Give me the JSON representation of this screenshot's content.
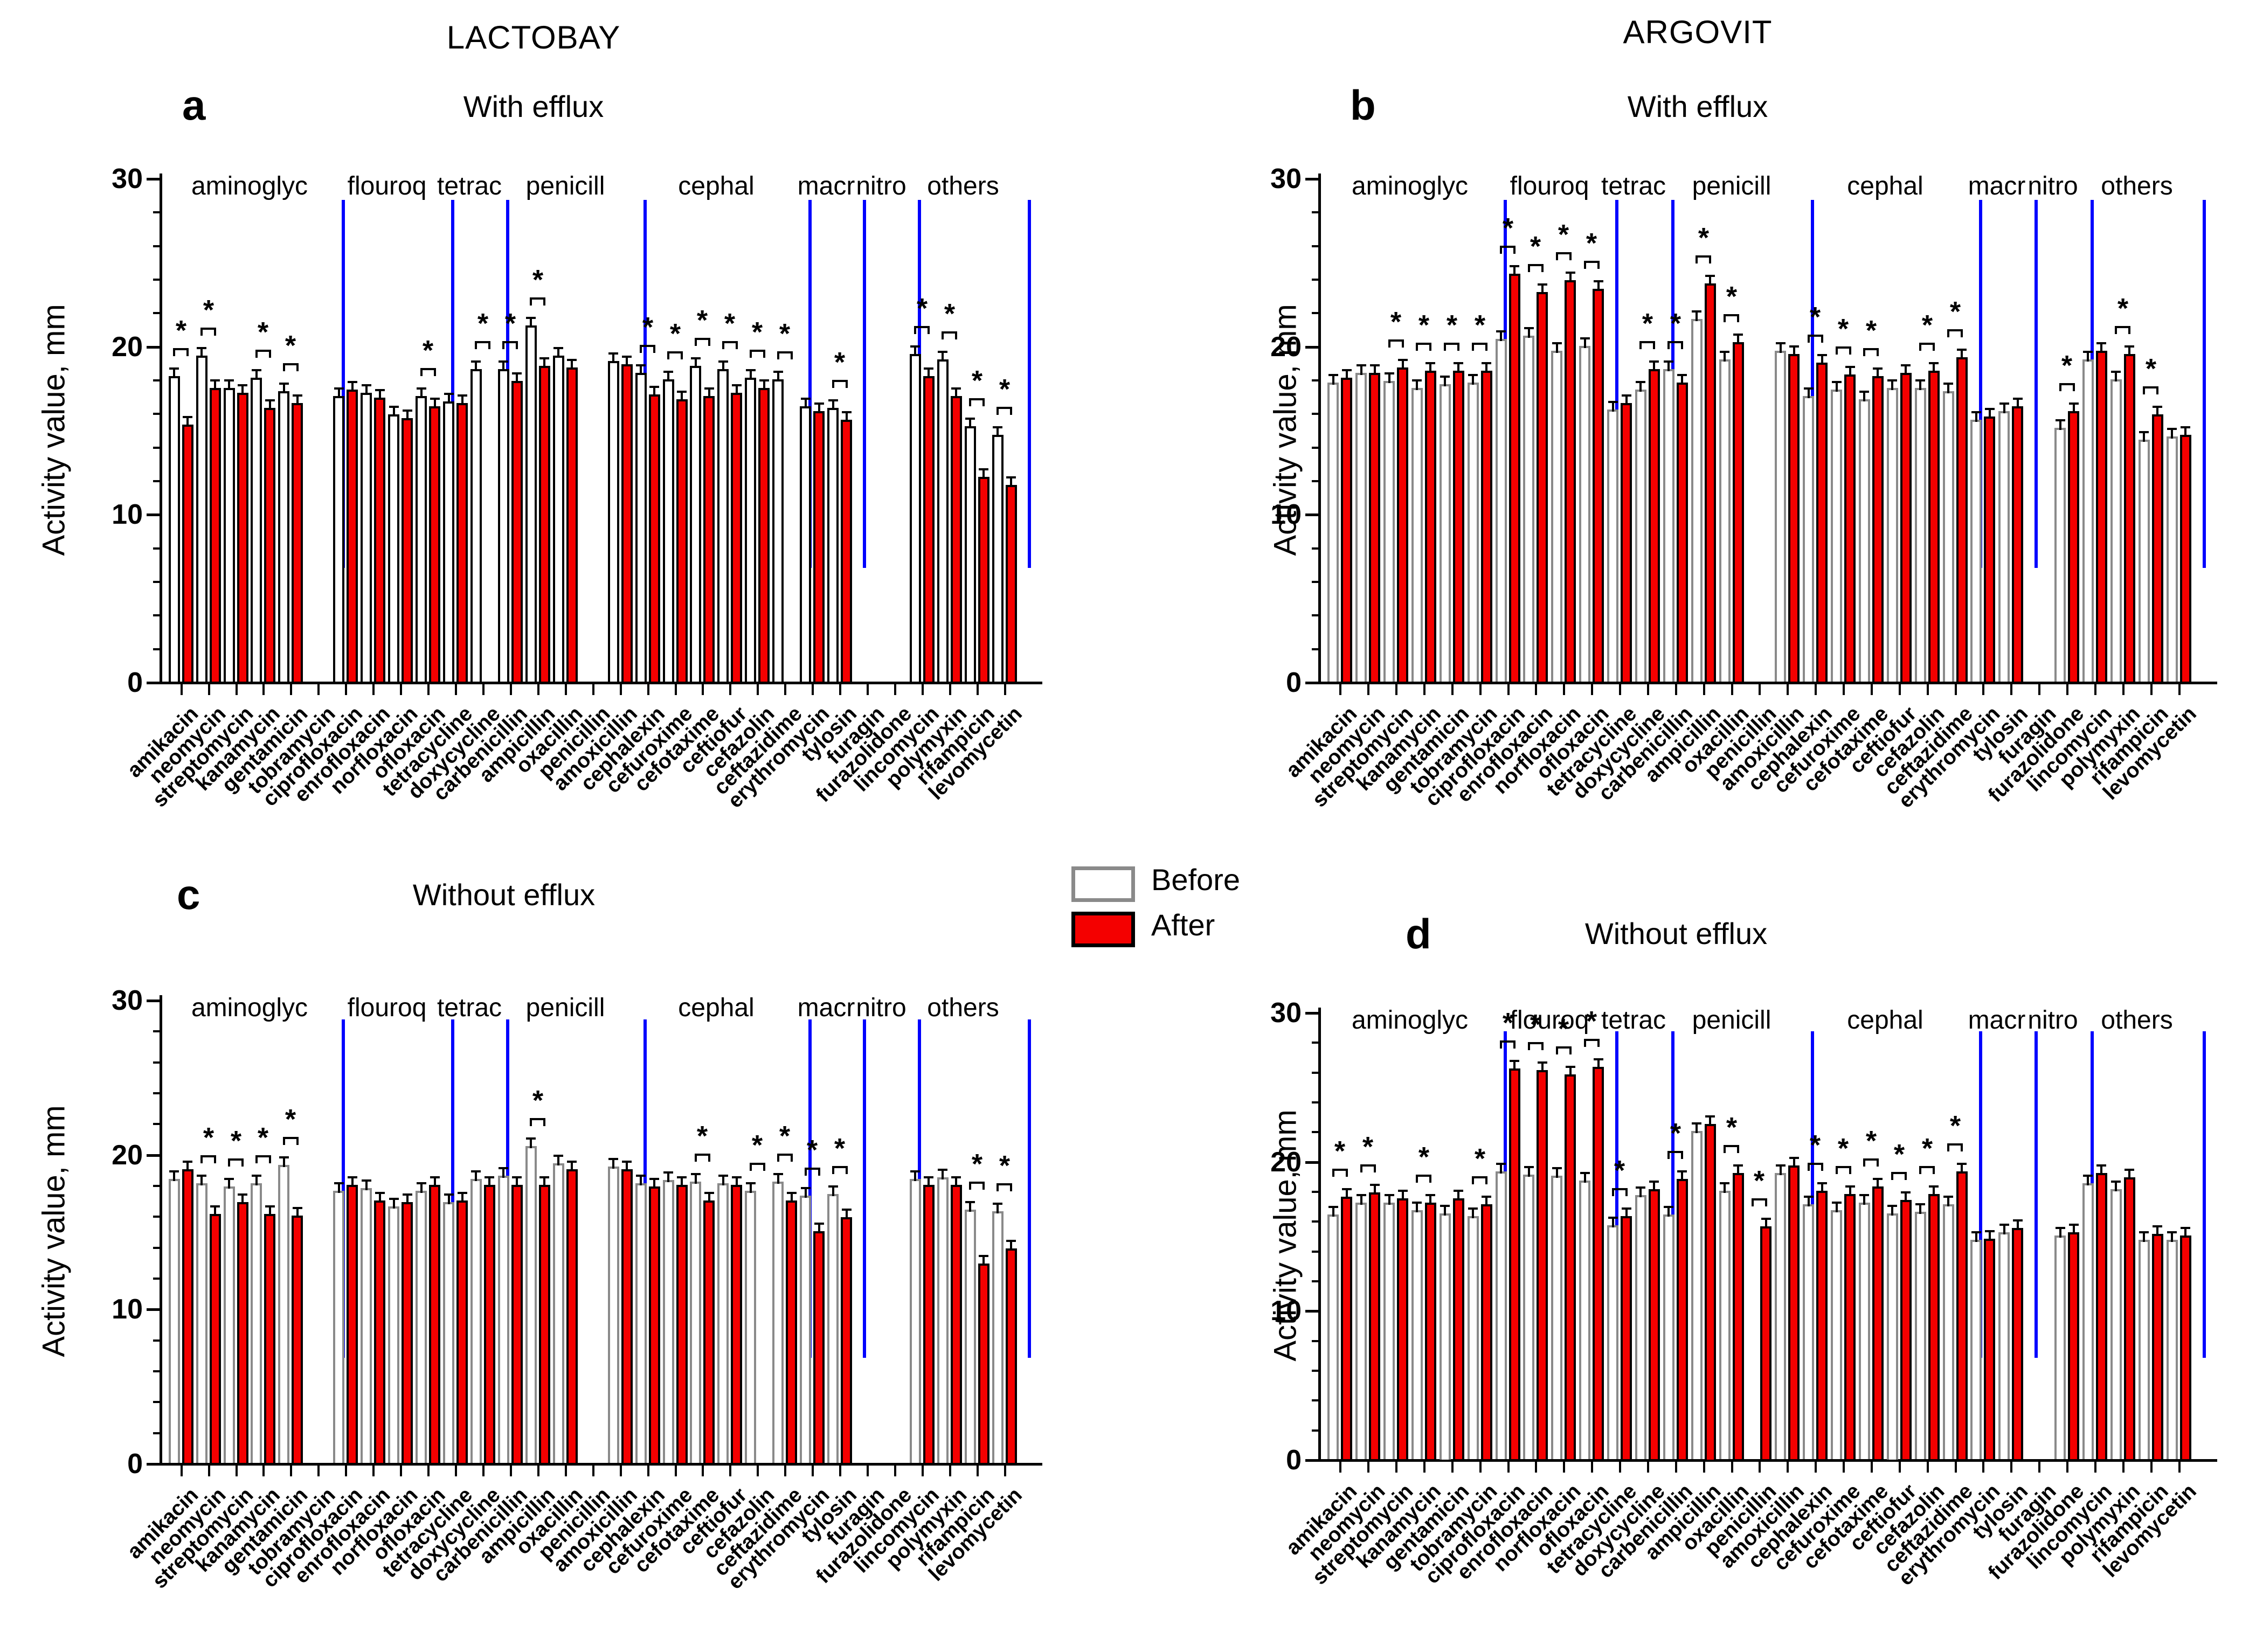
{
  "figure": {
    "column_titles": {
      "left": "LACTOBAY",
      "right": "ARGOVIT"
    },
    "legend": [
      {
        "label": "Before",
        "fill": "#ffffff",
        "border": "#8a8a8a"
      },
      {
        "label": "After",
        "fill": "#f40000",
        "border": "#000000"
      }
    ],
    "colors": {
      "separator": "#0000fe",
      "axis": "#000000",
      "after_fill": "#f40000"
    }
  },
  "chart_data": [
    {
      "type": "bar",
      "panel": "a",
      "column_title": "LACTOBAY",
      "title": "With efflux",
      "ylabel": "Activity value, mm",
      "ylim": [
        0,
        30
      ],
      "yticks": [
        0,
        10,
        20,
        30
      ],
      "minor_tick_step": 2,
      "grid": false,
      "before_border": "#000000",
      "groups": [
        {
          "label": "aminoglyc",
          "from": 0,
          "to": 5
        },
        {
          "label": "flouroq",
          "from": 6,
          "to": 9
        },
        {
          "label": "tetrac",
          "from": 10,
          "to": 11
        },
        {
          "label": "penicill",
          "from": 12,
          "to": 16
        },
        {
          "label": "cephal",
          "from": 17,
          "to": 22
        },
        {
          "label": "macr",
          "from": 23,
          "to": 24
        },
        {
          "label": "nitro",
          "from": 25,
          "to": 26
        },
        {
          "label": "others",
          "from": 27,
          "to": 30
        }
      ],
      "categories": [
        "amikacin",
        "neomycin",
        "streptomycin",
        "kanamycin",
        "gentamicin",
        "tobramycin",
        "ciprofloxacin",
        "enrofloxacin",
        "norfloxacin",
        "ofloxacin",
        "tetracycline",
        "doxycycline",
        "carbenicillin",
        "ampicillin",
        "oxacillin",
        "penicillin",
        "amoxicillin",
        "cephalexin",
        "cefuroxime",
        "cefotaxime",
        "ceftiofur",
        "cefazolin",
        "ceftazidime",
        "erythromycin",
        "tylosin",
        "furagin",
        "furazolidone",
        "lincomycin",
        "polymyxin",
        "rifampicin",
        "levomycetin"
      ],
      "series": [
        {
          "name": "Before",
          "values": [
            18.2,
            19.4,
            17.5,
            18.1,
            17.3,
            null,
            17.0,
            17.2,
            15.9,
            17.0,
            16.7,
            18.6,
            18.6,
            21.2,
            19.4,
            null,
            19.1,
            18.4,
            18.0,
            18.8,
            18.6,
            18.1,
            18.0,
            16.4,
            16.3,
            null,
            null,
            19.5,
            19.2,
            15.2,
            14.7
          ]
        },
        {
          "name": "After",
          "values": [
            15.3,
            17.5,
            17.2,
            16.3,
            16.6,
            null,
            17.4,
            16.9,
            15.7,
            16.4,
            16.6,
            null,
            17.9,
            18.8,
            18.7,
            null,
            18.9,
            17.1,
            16.8,
            17.0,
            17.2,
            17.5,
            null,
            16.1,
            15.6,
            null,
            null,
            18.2,
            17.0,
            12.2,
            11.7
          ]
        }
      ],
      "significant": [
        true,
        true,
        false,
        true,
        true,
        false,
        false,
        false,
        false,
        true,
        false,
        true,
        true,
        true,
        false,
        false,
        false,
        true,
        true,
        true,
        true,
        true,
        true,
        false,
        true,
        false,
        false,
        true,
        true,
        true,
        true
      ]
    },
    {
      "type": "bar",
      "panel": "b",
      "column_title": "ARGOVIT",
      "title": "With efflux",
      "ylabel": "Activity value, mm",
      "ylim": [
        0,
        30
      ],
      "yticks": [
        0,
        10,
        20,
        30
      ],
      "minor_tick_step": 2,
      "grid": false,
      "before_border": "#8a8a8a",
      "groups": [
        {
          "label": "aminoglyc",
          "from": 0,
          "to": 5
        },
        {
          "label": "flouroq",
          "from": 6,
          "to": 9
        },
        {
          "label": "tetrac",
          "from": 10,
          "to": 11
        },
        {
          "label": "penicill",
          "from": 12,
          "to": 16
        },
        {
          "label": "cephal",
          "from": 17,
          "to": 22
        },
        {
          "label": "macr",
          "from": 23,
          "to": 24
        },
        {
          "label": "nitro",
          "from": 25,
          "to": 26
        },
        {
          "label": "others",
          "from": 27,
          "to": 30
        }
      ],
      "categories": [
        "amikacin",
        "neomycin",
        "streptomycin",
        "kanamycin",
        "gentamicin",
        "tobramycin",
        "ciprofloxacin",
        "enrofloxacin",
        "norfloxacin",
        "ofloxacin",
        "tetracycline",
        "doxycycline",
        "carbenicillin",
        "ampicillin",
        "oxacillin",
        "penicillin",
        "amoxicillin",
        "cephalexin",
        "cefuroxime",
        "cefotaxime",
        "ceftiofur",
        "cefazolin",
        "ceftazidime",
        "erythromycin",
        "tylosin",
        "furagin",
        "furazolidone",
        "lincomycin",
        "polymyxin",
        "rifampicin",
        "levomycetin"
      ],
      "series": [
        {
          "name": "Before",
          "values": [
            17.8,
            18.4,
            17.9,
            17.5,
            17.7,
            17.8,
            20.4,
            20.6,
            19.7,
            20.0,
            16.2,
            17.4,
            18.6,
            21.6,
            19.2,
            null,
            19.7,
            17.0,
            17.4,
            16.8,
            17.5,
            17.5,
            17.3,
            15.6,
            16.1,
            null,
            15.1,
            19.2,
            18.0,
            14.4,
            14.6
          ]
        },
        {
          "name": "After",
          "values": [
            18.1,
            18.4,
            18.7,
            18.5,
            18.5,
            18.5,
            24.3,
            23.2,
            23.9,
            23.4,
            16.6,
            18.6,
            17.8,
            23.7,
            20.2,
            null,
            19.5,
            19.0,
            18.3,
            18.2,
            18.4,
            18.5,
            19.3,
            15.8,
            16.4,
            null,
            16.1,
            19.7,
            19.5,
            15.9,
            14.7
          ]
        }
      ],
      "significant": [
        false,
        false,
        true,
        true,
        true,
        true,
        true,
        true,
        true,
        true,
        false,
        true,
        true,
        true,
        true,
        false,
        false,
        true,
        true,
        true,
        false,
        true,
        true,
        false,
        false,
        false,
        true,
        false,
        true,
        true,
        false
      ]
    },
    {
      "type": "bar",
      "panel": "c",
      "title": "Without efflux",
      "ylabel": "Activity value, mm",
      "ylim": [
        0,
        30
      ],
      "yticks": [
        0,
        10,
        20,
        30
      ],
      "minor_tick_step": 2,
      "grid": false,
      "before_border": "#8a8a8a",
      "groups": [
        {
          "label": "aminoglyc",
          "from": 0,
          "to": 5
        },
        {
          "label": "flouroq",
          "from": 6,
          "to": 9
        },
        {
          "label": "tetrac",
          "from": 10,
          "to": 11
        },
        {
          "label": "penicill",
          "from": 12,
          "to": 16
        },
        {
          "label": "cephal",
          "from": 17,
          "to": 22
        },
        {
          "label": "macr",
          "from": 23,
          "to": 24
        },
        {
          "label": "nitro",
          "from": 25,
          "to": 26
        },
        {
          "label": "others",
          "from": 27,
          "to": 30
        }
      ],
      "categories": [
        "amikacin",
        "neomycin",
        "streptomycin",
        "kanamycin",
        "gentamicin",
        "tobramycin",
        "ciprofloxacin",
        "enrofloxacin",
        "norfloxacin",
        "ofloxacin",
        "tetracycline",
        "doxycycline",
        "carbenicillin",
        "ampicillin",
        "oxacillin",
        "penicillin",
        "amoxicillin",
        "cephalexin",
        "cefuroxime",
        "cefotaxime",
        "ceftiofur",
        "cefazolin",
        "ceftazidime",
        "erythromycin",
        "tylosin",
        "furagin",
        "furazolidone",
        "lincomycin",
        "polymyxin",
        "rifampicin",
        "levomycetin"
      ],
      "series": [
        {
          "name": "Before",
          "values": [
            18.4,
            18.1,
            17.9,
            18.1,
            19.3,
            null,
            17.6,
            17.8,
            16.6,
            17.6,
            16.9,
            18.4,
            18.6,
            20.5,
            19.4,
            null,
            19.2,
            18.1,
            18.3,
            18.2,
            18.1,
            17.6,
            18.2,
            17.3,
            17.4,
            null,
            null,
            18.4,
            18.5,
            16.4,
            16.3
          ]
        },
        {
          "name": "After",
          "values": [
            19.0,
            16.1,
            16.9,
            16.1,
            16.0,
            null,
            18.0,
            17.0,
            16.9,
            18.0,
            17.0,
            18.0,
            18.0,
            18.0,
            19.0,
            null,
            19.0,
            17.9,
            18.0,
            17.0,
            18.0,
            null,
            17.0,
            15.0,
            15.9,
            null,
            null,
            18.0,
            18.0,
            12.9,
            13.9
          ]
        }
      ],
      "significant": [
        false,
        true,
        true,
        true,
        true,
        false,
        false,
        false,
        false,
        false,
        false,
        false,
        false,
        true,
        false,
        false,
        false,
        false,
        false,
        true,
        false,
        true,
        true,
        true,
        true,
        false,
        false,
        false,
        false,
        true,
        true
      ]
    },
    {
      "type": "bar",
      "panel": "d",
      "title": "Without efflux",
      "ylabel": "Activity value, mm",
      "ylim": [
        0,
        30
      ],
      "yticks": [
        0,
        10,
        20,
        30
      ],
      "minor_tick_step": 2,
      "grid": false,
      "before_border": "#8a8a8a",
      "groups": [
        {
          "label": "aminoglyc",
          "from": 0,
          "to": 5
        },
        {
          "label": "flouroq",
          "from": 6,
          "to": 9
        },
        {
          "label": "tetrac",
          "from": 10,
          "to": 11
        },
        {
          "label": "penicill",
          "from": 12,
          "to": 16
        },
        {
          "label": "cephal",
          "from": 17,
          "to": 22
        },
        {
          "label": "macr",
          "from": 23,
          "to": 24
        },
        {
          "label": "nitro",
          "from": 25,
          "to": 26
        },
        {
          "label": "others",
          "from": 27,
          "to": 30
        }
      ],
      "categories": [
        "amikacin",
        "neomycin",
        "streptomycin",
        "kanamycin",
        "gentamicin",
        "tobramycin",
        "ciprofloxacin",
        "enrofloxacin",
        "norfloxacin",
        "ofloxacin",
        "tetracycline",
        "doxycycline",
        "carbenicillin",
        "ampicillin",
        "oxacillin",
        "penicillin",
        "amoxicillin",
        "cephalexin",
        "cefuroxime",
        "cefotaxime",
        "ceftiofur",
        "cefazolin",
        "ceftazidime",
        "erythromycin",
        "tylosin",
        "furagin",
        "furazolidone",
        "lincomycin",
        "polymyxin",
        "rifampicin",
        "levomycetin"
      ],
      "series": [
        {
          "name": "Before",
          "values": [
            16.4,
            17.2,
            17.2,
            16.7,
            16.5,
            16.3,
            19.3,
            19.1,
            19.0,
            18.7,
            15.7,
            17.7,
            16.4,
            22.0,
            18.0,
            null,
            19.2,
            17.1,
            16.7,
            17.2,
            16.5,
            16.6,
            17.1,
            14.7,
            15.2,
            null,
            15.0,
            18.5,
            18.1,
            14.7,
            14.7
          ]
        },
        {
          "name": "After",
          "values": [
            17.6,
            17.9,
            17.5,
            17.2,
            17.5,
            17.1,
            26.2,
            26.1,
            25.8,
            26.3,
            16.3,
            18.1,
            18.8,
            22.5,
            19.2,
            15.6,
            19.7,
            18.0,
            17.8,
            18.3,
            17.4,
            17.8,
            19.3,
            14.8,
            15.5,
            null,
            15.2,
            19.2,
            18.9,
            15.1,
            15.0
          ]
        }
      ],
      "significant": [
        true,
        true,
        false,
        true,
        false,
        true,
        true,
        true,
        true,
        true,
        true,
        false,
        true,
        false,
        true,
        true,
        false,
        true,
        true,
        true,
        true,
        true,
        true,
        false,
        false,
        false,
        false,
        false,
        false,
        false,
        false
      ]
    }
  ]
}
